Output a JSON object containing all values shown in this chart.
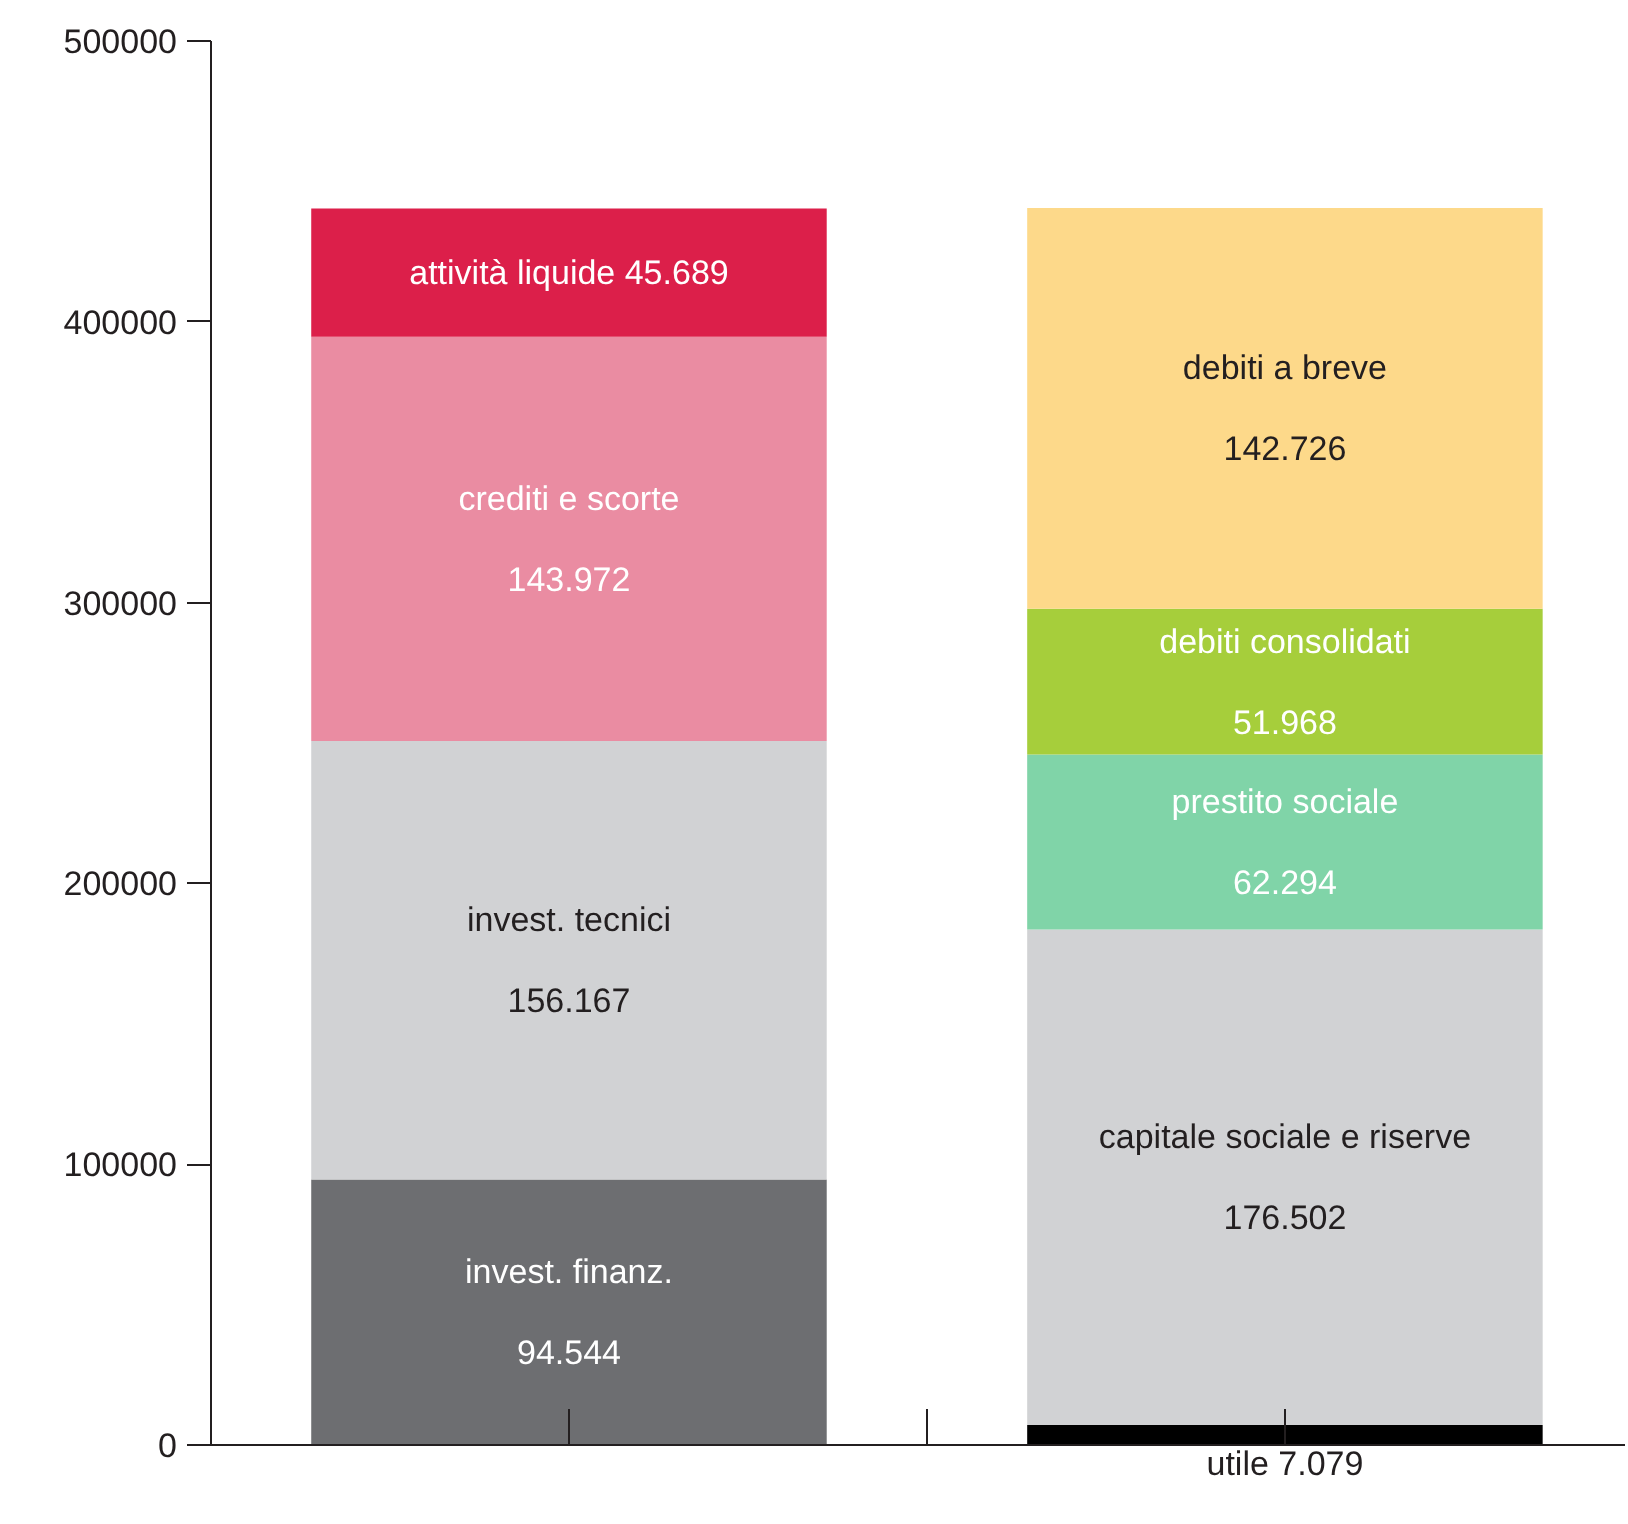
{
  "chart_data": {
    "type": "bar",
    "stacked": true,
    "categories": [
      null,
      null
    ],
    "ylim": [
      0,
      500000
    ],
    "yticks": [
      0,
      100000,
      200000,
      300000,
      400000,
      500000
    ],
    "grid": false,
    "series": [
      {
        "name": "invest. finanz.",
        "color": "#6d6e71",
        "values": [
          94544,
          null
        ],
        "value_labels": [
          "94.544",
          null
        ]
      },
      {
        "name": "utile",
        "color": "#000000",
        "values": [
          null,
          7079
        ],
        "value_labels": [
          null,
          "7.079"
        ]
      },
      {
        "name": "invest. tecnici",
        "color": "#d1d2d4",
        "values": [
          156167,
          null
        ],
        "value_labels": [
          "156.167",
          null
        ]
      },
      {
        "name": "capitale sociale e riserve",
        "color": "#d1d2d4",
        "values": [
          null,
          176502
        ],
        "value_labels": [
          null,
          "176.502"
        ]
      },
      {
        "name": "crediti e scorte",
        "color": "#ea8ca2",
        "values": [
          143972,
          null
        ],
        "value_labels": [
          "143.972",
          null
        ]
      },
      {
        "name": "prestito sociale",
        "color": "#80d4a8",
        "values": [
          null,
          62294
        ],
        "value_labels": [
          null,
          "62.294"
        ]
      },
      {
        "name": "attività liquide",
        "color": "#dc1f4a",
        "values": [
          45689,
          null
        ],
        "value_labels": [
          "45.689",
          null
        ]
      },
      {
        "name": "debiti consolidati",
        "color": "#a6ce3b",
        "values": [
          null,
          51968
        ],
        "value_labels": [
          null,
          "51.968"
        ]
      },
      {
        "name": "debiti a breve",
        "color": "#fdd98a",
        "values": [
          null,
          142726
        ],
        "value_labels": [
          null,
          "142.726"
        ]
      }
    ]
  }
}
